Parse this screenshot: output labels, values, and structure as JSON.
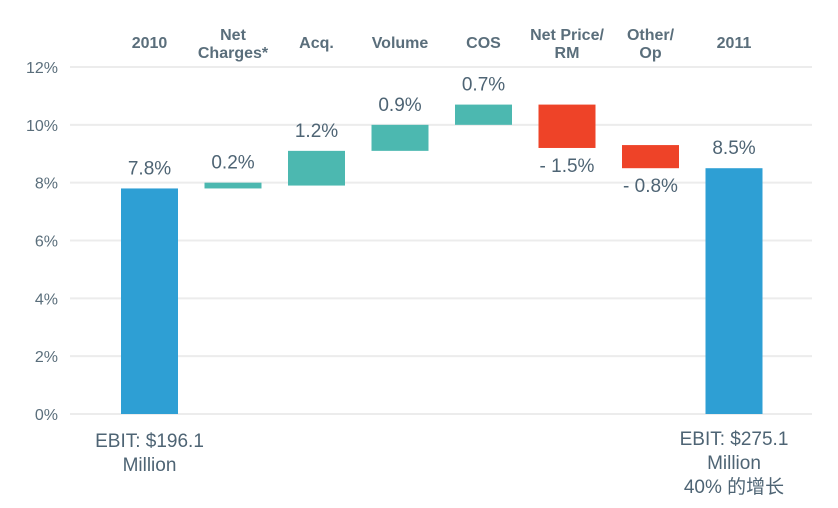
{
  "chart_data": {
    "type": "waterfall",
    "title": "",
    "xlabel": "",
    "ylabel": "",
    "ylim": [
      0,
      12
    ],
    "yticks": [
      "0%",
      "2%",
      "4%",
      "6%",
      "8%",
      "10%",
      "12%"
    ],
    "grid": true,
    "categories": [
      {
        "label": [
          "2010"
        ],
        "base": 0,
        "value": 7.8,
        "kind": "total",
        "data_label": "7.8%"
      },
      {
        "label": [
          "Net",
          "Charges*"
        ],
        "base": 7.8,
        "value": 0.2,
        "kind": "increase",
        "data_label": "0.2%"
      },
      {
        "label": [
          "Acq."
        ],
        "base": 7.9,
        "value": 1.2,
        "kind": "increase",
        "data_label": "1.2%"
      },
      {
        "label": [
          "Volume"
        ],
        "base": 9.1,
        "value": 0.9,
        "kind": "increase",
        "data_label": "0.9%"
      },
      {
        "label": [
          "COS"
        ],
        "base": 10.0,
        "value": 0.7,
        "kind": "increase",
        "data_label": "0.7%"
      },
      {
        "label": [
          "Net Price/",
          "RM"
        ],
        "base": 10.7,
        "value": -1.5,
        "kind": "decrease",
        "data_label": "- 1.5%"
      },
      {
        "label": [
          "Other/",
          "Op"
        ],
        "base": 9.3,
        "value": -0.8,
        "kind": "decrease",
        "data_label": "- 0.8%"
      },
      {
        "label": [
          "2011"
        ],
        "base": 0,
        "value": 8.5,
        "kind": "total",
        "data_label": "8.5%"
      }
    ],
    "colors": {
      "total": "#2e9fd4",
      "increase": "#4cb8b0",
      "decrease": "#ee4328",
      "grid": "#ececec",
      "text": "#4e6474"
    },
    "annotations": {
      "left": [
        "EBIT: $196.1",
        "Million"
      ],
      "right": [
        "EBIT: $275.1",
        "Million",
        "40% 的增长"
      ]
    }
  }
}
